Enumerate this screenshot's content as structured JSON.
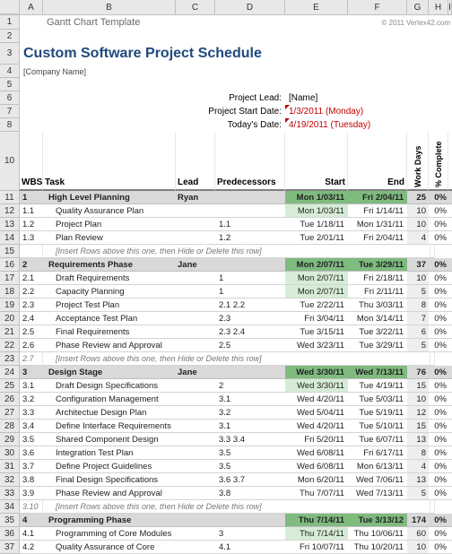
{
  "columns": [
    "A",
    "B",
    "C",
    "D",
    "E",
    "F",
    "G",
    "H",
    "I",
    "J"
  ],
  "colWidths": {
    "A": 26,
    "B": 148,
    "C": 44,
    "D": 78,
    "E": 70,
    "F": 66,
    "G": 24,
    "H": 22
  },
  "templateTitle": "Gantt Chart Template",
  "copyright": "© 2011 Vertex42.com",
  "mainTitle": "Custom Software Project Schedule",
  "companyPlaceholder": "[Company Name]",
  "meta": {
    "leadLabel": "Project Lead:",
    "leadValue": "[Name]",
    "startLabel": "Project Start Date:",
    "startValue": "1/3/2011 (Monday)",
    "todayLabel": "Today's Date:",
    "todayValue": "4/19/2011 (Tuesday)"
  },
  "headers": {
    "wbs": "WBS",
    "task": "Task",
    "lead": "Lead",
    "pred": "Predecessors",
    "start": "Start",
    "end": "End",
    "workDays": "Work Days",
    "pctComplete": "% Complete"
  },
  "headerRowNum": "10",
  "hintText": "[Insert Rows above this one, then Hide or Delete this row]",
  "colors": {
    "phaseBg": "#d9d9d9",
    "phaseDateBg": "#7fba7f",
    "lightGreen": "#d6ecd6",
    "wdBg": "#eeeeee",
    "titleColor": "#1f497d"
  },
  "rows": [
    {
      "n": "11",
      "type": "phase",
      "wbs": "1",
      "task": "High Level Planning",
      "lead": "Ryan",
      "pred": "",
      "start": "Mon 1/03/11",
      "end": "Fri 2/04/11",
      "wd": "25",
      "pc": "0%"
    },
    {
      "n": "12",
      "type": "item",
      "wbs": "1.1",
      "task": "Quality Assurance Plan",
      "lead": "",
      "pred": "",
      "start": "Mon 1/03/11",
      "startGreen": true,
      "end": "Fri 1/14/11",
      "wd": "10",
      "pc": "0%"
    },
    {
      "n": "13",
      "type": "item",
      "wbs": "1.2",
      "task": "Project Plan",
      "lead": "",
      "pred": "1.1",
      "start": "Tue 1/18/11",
      "end": "Mon 1/31/11",
      "wd": "10",
      "pc": "0%"
    },
    {
      "n": "14",
      "type": "item",
      "wbs": "1.3",
      "task": "Plan Review",
      "lead": "",
      "pred": "1.2",
      "start": "Tue 2/01/11",
      "end": "Fri 2/04/11",
      "wd": "4",
      "pc": "0%"
    },
    {
      "n": "15",
      "type": "hint"
    },
    {
      "n": "16",
      "type": "phase",
      "wbs": "2",
      "task": "Requirements Phase",
      "lead": "Jane",
      "pred": "",
      "start": "Mon 2/07/11",
      "end": "Tue 3/29/11",
      "wd": "37",
      "pc": "0%"
    },
    {
      "n": "17",
      "type": "item",
      "wbs": "2.1",
      "task": "Draft Requirements",
      "lead": "",
      "pred": "1",
      "start": "Mon 2/07/11",
      "startGreen": true,
      "end": "Fri 2/18/11",
      "wd": "10",
      "pc": "0%"
    },
    {
      "n": "18",
      "type": "item",
      "wbs": "2.2",
      "task": "Capacity Planning",
      "lead": "",
      "pred": "1",
      "start": "Mon 2/07/11",
      "startGreen": true,
      "end": "Fri 2/11/11",
      "wd": "5",
      "pc": "0%"
    },
    {
      "n": "19",
      "type": "item",
      "wbs": "2.3",
      "task": "Project Test Plan",
      "lead": "",
      "pred": "2.1   2.2",
      "start": "Tue 2/22/11",
      "end": "Thu 3/03/11",
      "wd": "8",
      "pc": "0%"
    },
    {
      "n": "20",
      "type": "item",
      "wbs": "2.4",
      "task": "Acceptance Test Plan",
      "lead": "",
      "pred": "2.3",
      "start": "Fri 3/04/11",
      "end": "Mon 3/14/11",
      "wd": "7",
      "pc": "0%"
    },
    {
      "n": "21",
      "type": "item",
      "wbs": "2.5",
      "task": "Final Requirements",
      "lead": "",
      "pred": "2.3   2.4",
      "start": "Tue 3/15/11",
      "end": "Tue 3/22/11",
      "wd": "6",
      "pc": "0%"
    },
    {
      "n": "22",
      "type": "item",
      "wbs": "2.6",
      "task": "Phase Review and Approval",
      "lead": "",
      "pred": "2.5",
      "start": "Wed 3/23/11",
      "end": "Tue 3/29/11",
      "wd": "5",
      "pc": "0%"
    },
    {
      "n": "23",
      "type": "hint",
      "wbs": "2.7"
    },
    {
      "n": "24",
      "type": "phase",
      "wbs": "3",
      "task": "Design Stage",
      "lead": "Jane",
      "pred": "",
      "start": "Wed 3/30/11",
      "end": "Wed 7/13/11",
      "wd": "76",
      "pc": "0%"
    },
    {
      "n": "25",
      "type": "item",
      "wbs": "3.1",
      "task": "Draft Design Specifications",
      "lead": "",
      "pred": "2",
      "start": "Wed 3/30/11",
      "startGreen": true,
      "end": "Tue 4/19/11",
      "wd": "15",
      "pc": "0%"
    },
    {
      "n": "26",
      "type": "item",
      "wbs": "3.2",
      "task": "Configuration Management",
      "lead": "",
      "pred": "3.1",
      "start": "Wed 4/20/11",
      "end": "Tue 5/03/11",
      "wd": "10",
      "pc": "0%"
    },
    {
      "n": "27",
      "type": "item",
      "wbs": "3.3",
      "task": "Architectue Design Plan",
      "lead": "",
      "pred": "3.2",
      "start": "Wed 5/04/11",
      "end": "Tue 5/19/11",
      "wd": "12",
      "pc": "0%"
    },
    {
      "n": "28",
      "type": "item",
      "wbs": "3.4",
      "task": "Define Interface Requirements",
      "lead": "",
      "pred": "3.1",
      "start": "Wed 4/20/11",
      "end": "Tue 5/10/11",
      "wd": "15",
      "pc": "0%"
    },
    {
      "n": "29",
      "type": "item",
      "wbs": "3.5",
      "task": "Shared Component Design",
      "lead": "",
      "pred": "3.3   3.4",
      "start": "Fri 5/20/11",
      "end": "Tue 6/07/11",
      "wd": "13",
      "pc": "0%"
    },
    {
      "n": "30",
      "type": "item",
      "wbs": "3.6",
      "task": "Integration Test Plan",
      "lead": "",
      "pred": "3.5",
      "start": "Wed 6/08/11",
      "end": "Fri 6/17/11",
      "wd": "8",
      "pc": "0%"
    },
    {
      "n": "31",
      "type": "item",
      "wbs": "3.7",
      "task": "Define Project Guidelines",
      "lead": "",
      "pred": "3.5",
      "start": "Wed 6/08/11",
      "end": "Mon 6/13/11",
      "wd": "4",
      "pc": "0%"
    },
    {
      "n": "32",
      "type": "item",
      "wbs": "3.8",
      "task": "Final Design Specifications",
      "lead": "",
      "pred": "3.6   3.7",
      "start": "Mon 6/20/11",
      "end": "Wed 7/06/11",
      "wd": "13",
      "pc": "0%"
    },
    {
      "n": "33",
      "type": "item",
      "wbs": "3.9",
      "task": "Phase Review and Approval",
      "lead": "",
      "pred": "3.8",
      "start": "Thu 7/07/11",
      "end": "Wed 7/13/11",
      "wd": "5",
      "pc": "0%"
    },
    {
      "n": "34",
      "type": "hint",
      "wbs": "3.10"
    },
    {
      "n": "35",
      "type": "phase",
      "wbs": "4",
      "task": "Programming Phase",
      "lead": "",
      "pred": "",
      "start": "Thu 7/14/11",
      "end": "Tue 3/13/12",
      "wd": "174",
      "pc": "0%"
    },
    {
      "n": "36",
      "type": "item",
      "wbs": "4.1",
      "task": "Programming of Core Modules",
      "lead": "",
      "pred": "3",
      "start": "Thu 7/14/11",
      "startGreen": true,
      "end": "Thu 10/06/11",
      "wd": "60",
      "pc": "0%"
    },
    {
      "n": "37",
      "type": "item",
      "wbs": "4.2",
      "task": "Quality Assurance of Core",
      "lead": "",
      "pred": "4.1",
      "start": "Fri 10/07/11",
      "end": "Thu 10/20/11",
      "wd": "10",
      "pc": "0%"
    }
  ]
}
